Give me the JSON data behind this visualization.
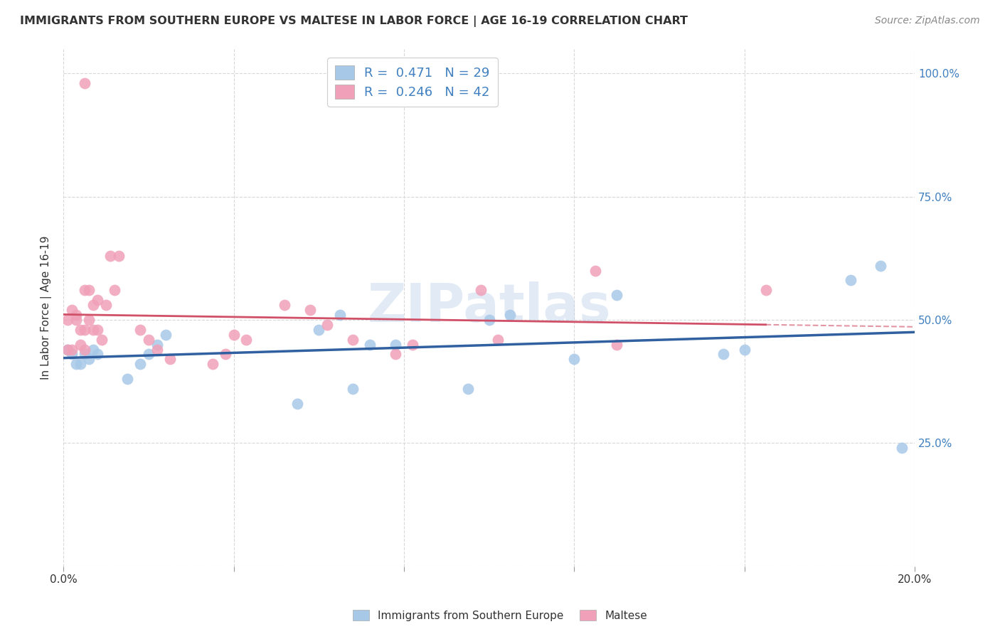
{
  "title": "IMMIGRANTS FROM SOUTHERN EUROPE VS MALTESE IN LABOR FORCE | AGE 16-19 CORRELATION CHART",
  "source": "Source: ZipAtlas.com",
  "ylabel": "In Labor Force | Age 16-19",
  "xlim": [
    0.0,
    0.2
  ],
  "ylim": [
    0.0,
    1.05
  ],
  "blue_R": 0.471,
  "blue_N": 29,
  "pink_R": 0.246,
  "pink_N": 42,
  "blue_color": "#a8c8e8",
  "pink_color": "#f0a0b8",
  "blue_line_color": "#3060a0",
  "pink_line_color": "#d05068",
  "watermark": "ZIPatlas",
  "blue_x": [
    0.001,
    0.002,
    0.003,
    0.004,
    0.005,
    0.006,
    0.007,
    0.008,
    0.015,
    0.018,
    0.02,
    0.022,
    0.024,
    0.055,
    0.06,
    0.065,
    0.068,
    0.072,
    0.078,
    0.095,
    0.1,
    0.105,
    0.12,
    0.13,
    0.155,
    0.16,
    0.185,
    0.192,
    0.197
  ],
  "blue_y": [
    0.44,
    0.43,
    0.41,
    0.41,
    0.43,
    0.42,
    0.44,
    0.43,
    0.38,
    0.41,
    0.43,
    0.45,
    0.47,
    0.33,
    0.48,
    0.51,
    0.36,
    0.45,
    0.45,
    0.36,
    0.5,
    0.51,
    0.42,
    0.55,
    0.43,
    0.44,
    0.58,
    0.61,
    0.24
  ],
  "pink_x": [
    0.001,
    0.001,
    0.002,
    0.002,
    0.003,
    0.003,
    0.004,
    0.004,
    0.005,
    0.005,
    0.005,
    0.006,
    0.006,
    0.007,
    0.007,
    0.008,
    0.008,
    0.009,
    0.01,
    0.011,
    0.012,
    0.013,
    0.018,
    0.02,
    0.022,
    0.025,
    0.035,
    0.038,
    0.04,
    0.043,
    0.052,
    0.058,
    0.062,
    0.068,
    0.078,
    0.082,
    0.098,
    0.102,
    0.125,
    0.13,
    0.165,
    0.005
  ],
  "pink_y": [
    0.44,
    0.5,
    0.52,
    0.44,
    0.51,
    0.5,
    0.48,
    0.45,
    0.48,
    0.44,
    0.56,
    0.56,
    0.5,
    0.53,
    0.48,
    0.54,
    0.48,
    0.46,
    0.53,
    0.63,
    0.56,
    0.63,
    0.48,
    0.46,
    0.44,
    0.42,
    0.41,
    0.43,
    0.47,
    0.46,
    0.53,
    0.52,
    0.49,
    0.46,
    0.43,
    0.45,
    0.56,
    0.46,
    0.6,
    0.45,
    0.56,
    0.98
  ],
  "grid_color": "#d8d8d8",
  "background_color": "#ffffff",
  "right_tick_color": "#4080c0",
  "label_color": "#333333",
  "source_color": "#888888",
  "title_fontsize": 11.5,
  "source_fontsize": 10,
  "axis_fontsize": 11,
  "legend_fontsize": 13
}
